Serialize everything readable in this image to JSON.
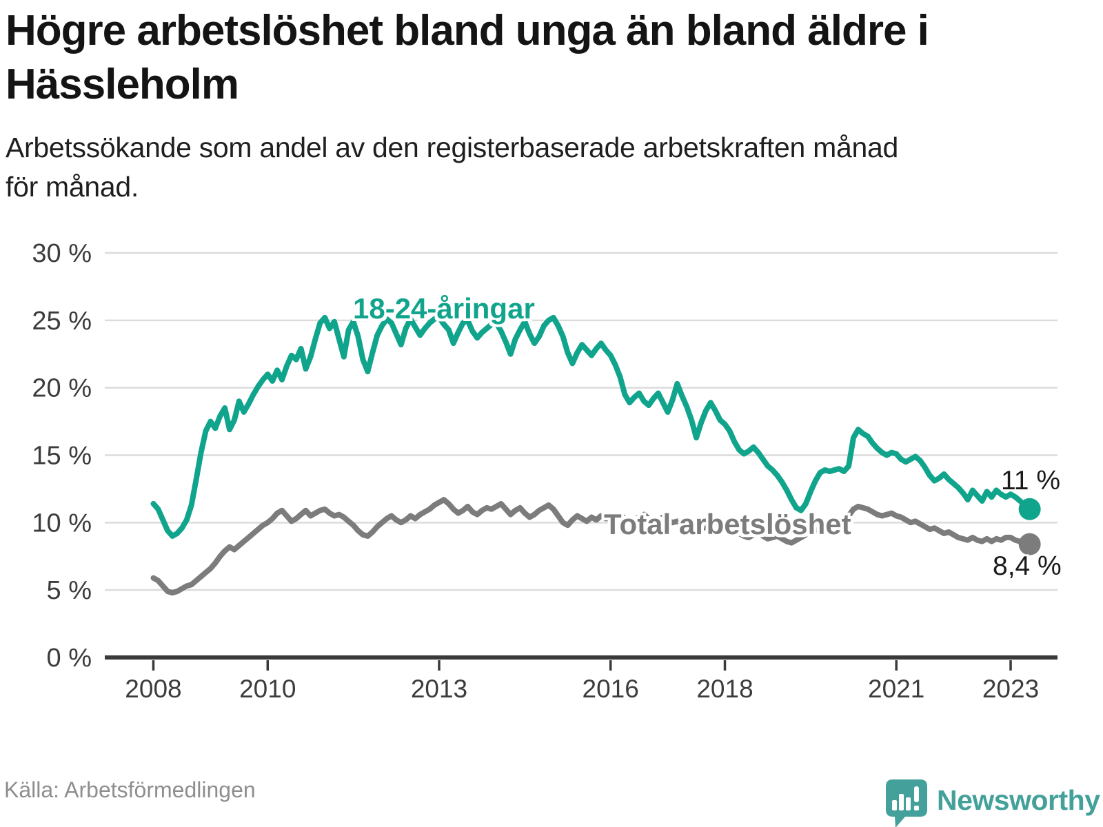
{
  "header": {
    "title": "Högre arbetslöshet bland unga än bland äldre i Hässleholm",
    "title_lines": [
      "Högre arbetslöshet bland unga än bland äldre i",
      "Hässleholm"
    ],
    "subtitle_lines": [
      "Arbetssökande som andel av den registerbaserade arbetskraften månad",
      "för månad."
    ]
  },
  "footer": {
    "source": "Källa: Arbetsförmedlingen",
    "brand": "Newsworthy"
  },
  "colors": {
    "youth_line": "#10a48c",
    "total_line": "#7c7c7c",
    "grid": "#dbdbdb",
    "axis": "#3a3a3a",
    "tick_text": "#3c3c3c",
    "end_label_text": "#1a1a1a",
    "logo_teal": "#44a09a"
  },
  "chart_data": {
    "type": "line",
    "title": "Högre arbetslöshet bland unga än bland äldre i Hässleholm",
    "subtitle": "Arbetssökande som andel av den registerbaserade arbetskraften månad för månad.",
    "source": "Källa: Arbetsförmedlingen",
    "grid": true,
    "legend_position": "inline-labels",
    "x_axis": {
      "domain": [
        2007.15,
        2023.82
      ],
      "ticks": [
        2008,
        2010,
        2013,
        2016,
        2018,
        2021,
        2023
      ],
      "tick_labels": [
        "2008",
        "2010",
        "2013",
        "2016",
        "2018",
        "2021",
        "2023"
      ]
    },
    "y_axis": {
      "domain": [
        0,
        30
      ],
      "ticks": [
        0,
        5,
        10,
        15,
        20,
        25,
        30
      ],
      "tick_labels": [
        "0 %",
        "5 %",
        "10 %",
        "15 %",
        "20 %",
        "25 %",
        "30 %"
      ]
    },
    "series": [
      {
        "name": "18-24-åringar",
        "color": "#10a48c",
        "start": "2008-01",
        "frequency": "monthly",
        "end_label": "11 %",
        "values": [
          11.4,
          11.0,
          10.2,
          9.4,
          9.0,
          9.2,
          9.6,
          10.2,
          11.3,
          13.2,
          15.2,
          16.8,
          17.5,
          17.0,
          17.9,
          18.5,
          16.9,
          17.6,
          19.0,
          18.2,
          18.8,
          19.5,
          20.1,
          20.6,
          21.0,
          20.5,
          21.3,
          20.6,
          21.6,
          22.4,
          22.1,
          22.9,
          21.4,
          22.3,
          23.6,
          24.8,
          25.2,
          24.4,
          24.9,
          23.6,
          22.3,
          24.3,
          24.9,
          23.8,
          22.1,
          21.2,
          22.6,
          23.9,
          24.6,
          25.1,
          24.8,
          24.0,
          23.2,
          24.4,
          25.1,
          24.5,
          23.9,
          24.4,
          24.8,
          25.1,
          25.2,
          24.7,
          24.3,
          23.3,
          24.1,
          24.8,
          25.0,
          24.2,
          23.7,
          24.1,
          24.4,
          24.7,
          24.8,
          24.2,
          23.4,
          22.5,
          23.6,
          24.3,
          24.9,
          24.0,
          23.3,
          23.8,
          24.6,
          25.0,
          25.2,
          24.6,
          23.8,
          22.6,
          21.8,
          22.6,
          23.2,
          22.8,
          22.4,
          22.9,
          23.3,
          22.8,
          22.4,
          21.7,
          20.8,
          19.5,
          18.9,
          19.3,
          19.6,
          19.0,
          18.7,
          19.2,
          19.6,
          18.9,
          18.2,
          19.1,
          20.3,
          19.4,
          18.6,
          17.6,
          16.3,
          17.4,
          18.3,
          18.9,
          18.3,
          17.6,
          17.3,
          16.8,
          16.0,
          15.4,
          15.1,
          15.3,
          15.6,
          15.2,
          14.7,
          14.2,
          13.9,
          13.5,
          13.0,
          12.4,
          11.7,
          11.1,
          10.9,
          11.4,
          12.3,
          13.1,
          13.7,
          13.9,
          13.8,
          13.9,
          14.0,
          13.8,
          14.2,
          16.3,
          16.9,
          16.6,
          16.4,
          15.9,
          15.5,
          15.2,
          15.0,
          15.2,
          15.1,
          14.7,
          14.5,
          14.7,
          14.9,
          14.6,
          14.1,
          13.5,
          13.1,
          13.3,
          13.6,
          13.2,
          12.9,
          12.6,
          12.2,
          11.7,
          12.4,
          12.0,
          11.6,
          12.3,
          11.9,
          12.4,
          12.1,
          11.9,
          12.1,
          11.9,
          11.6,
          11.3,
          11.0
        ]
      },
      {
        "name": "Total arbetslöshet",
        "color": "#7c7c7c",
        "start": "2008-01",
        "frequency": "monthly",
        "end_label": "8,4 %",
        "values": [
          5.9,
          5.7,
          5.3,
          4.9,
          4.8,
          4.9,
          5.1,
          5.3,
          5.4,
          5.7,
          6.0,
          6.3,
          6.6,
          7.0,
          7.5,
          7.9,
          8.2,
          8.0,
          8.3,
          8.6,
          8.9,
          9.2,
          9.5,
          9.8,
          10.0,
          10.3,
          10.7,
          10.9,
          10.5,
          10.1,
          10.3,
          10.6,
          10.9,
          10.5,
          10.7,
          10.9,
          11.0,
          10.7,
          10.5,
          10.6,
          10.4,
          10.1,
          9.8,
          9.4,
          9.1,
          9.0,
          9.3,
          9.7,
          10.0,
          10.3,
          10.5,
          10.2,
          10.0,
          10.2,
          10.5,
          10.3,
          10.6,
          10.8,
          11.0,
          11.3,
          11.5,
          11.7,
          11.4,
          11.0,
          10.7,
          10.9,
          11.2,
          10.8,
          10.6,
          10.9,
          11.1,
          11.0,
          11.2,
          11.4,
          11.0,
          10.6,
          10.9,
          11.1,
          10.7,
          10.4,
          10.6,
          10.9,
          11.1,
          11.3,
          11.0,
          10.5,
          10.0,
          9.8,
          10.2,
          10.5,
          10.3,
          10.1,
          10.4,
          10.2,
          10.5,
          10.3,
          10.3,
          10.5,
          10.6,
          10.3,
          10.1,
          10.2,
          10.4,
          10.6,
          10.3,
          10.1,
          10.2,
          10.4,
          10.2,
          10.0,
          10.1,
          9.9,
          9.7,
          9.5,
          9.3,
          9.5,
          9.7,
          9.8,
          9.6,
          9.4,
          9.6,
          9.7,
          9.4,
          9.2,
          9.0,
          8.9,
          9.1,
          9.3,
          9.0,
          8.8,
          8.9,
          9.0,
          8.8,
          8.6,
          8.5,
          8.7,
          8.9,
          9.1,
          9.3,
          9.5,
          9.4,
          9.6,
          9.8,
          10.0,
          10.1,
          10.2,
          10.5,
          11.0,
          11.2,
          11.1,
          11.0,
          10.8,
          10.6,
          10.5,
          10.6,
          10.7,
          10.5,
          10.4,
          10.2,
          10.0,
          10.1,
          9.9,
          9.7,
          9.5,
          9.6,
          9.4,
          9.2,
          9.3,
          9.1,
          8.9,
          8.8,
          8.7,
          8.9,
          8.7,
          8.6,
          8.8,
          8.6,
          8.8,
          8.7,
          8.9,
          8.9,
          8.7,
          8.6,
          8.5,
          8.4
        ]
      }
    ]
  }
}
